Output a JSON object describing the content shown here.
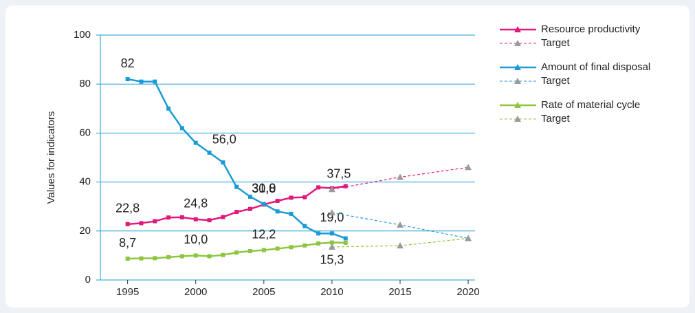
{
  "chart_data": {
    "type": "line",
    "y_label": "Values for indicators",
    "x": [
      1995,
      1996,
      1997,
      1998,
      1999,
      2000,
      2001,
      2002,
      2003,
      2004,
      2005,
      2006,
      2007,
      2008,
      2009,
      2010,
      2011
    ],
    "xlim": [
      1993,
      2020.5
    ],
    "xticks": [
      1995,
      2000,
      2005,
      2010,
      2015,
      2020
    ],
    "ylim": [
      0,
      100
    ],
    "yticks": [
      0,
      20,
      40,
      60,
      80,
      100
    ],
    "grid": true,
    "legend": "right",
    "series": [
      {
        "name": "Resource productivity",
        "color": "#e2187c",
        "values": [
          22.8,
          23.2,
          24.0,
          25.5,
          25.6,
          24.8,
          24.4,
          25.7,
          27.8,
          29.0,
          30.8,
          32.3,
          33.6,
          33.8,
          37.8,
          37.5,
          38.3
        ],
        "value_labels": [
          "22,8",
          null,
          null,
          null,
          null,
          "24,8",
          null,
          null,
          null,
          null,
          "30,8",
          null,
          null,
          null,
          null,
          "37,5",
          null
        ]
      },
      {
        "name": "Target",
        "color": "#e2187c",
        "marker_color": "#9a9a9a",
        "dashed": true,
        "x": [
          2010,
          2015,
          2020
        ],
        "values": [
          37,
          42,
          46
        ]
      },
      {
        "name": "Amount of final disposal",
        "color": "#1a9ad6",
        "values": [
          82,
          81,
          81,
          70,
          62,
          56,
          52,
          48,
          38,
          34,
          31,
          28,
          27,
          22,
          19,
          19,
          17
        ],
        "value_labels": [
          "82",
          null,
          null,
          null,
          null,
          "56,0",
          null,
          null,
          null,
          null,
          "31,0",
          null,
          null,
          null,
          null,
          "19,0",
          null
        ]
      },
      {
        "name": "Target",
        "color": "#1a9ad6",
        "marker_color": "#9a9a9a",
        "dashed": true,
        "x": [
          2010,
          2015,
          2020
        ],
        "values": [
          27.5,
          22.5,
          17
        ]
      },
      {
        "name": "Rate of material cycle",
        "color": "#8cc63f",
        "values": [
          8.7,
          8.8,
          8.9,
          9.3,
          9.7,
          10.0,
          9.7,
          10.2,
          11.2,
          11.8,
          12.2,
          12.8,
          13.4,
          14.1,
          14.9,
          15.3,
          15.2
        ],
        "value_labels": [
          "8,7",
          null,
          null,
          null,
          null,
          "10,0",
          null,
          null,
          null,
          null,
          "12,2",
          null,
          null,
          null,
          null,
          "15,3",
          null
        ]
      },
      {
        "name": "Target",
        "color": "#8cc63f",
        "marker_color": "#9a9a9a",
        "dashed": true,
        "x": [
          2010,
          2015,
          2020
        ],
        "values": [
          13.5,
          14,
          17
        ]
      }
    ]
  }
}
